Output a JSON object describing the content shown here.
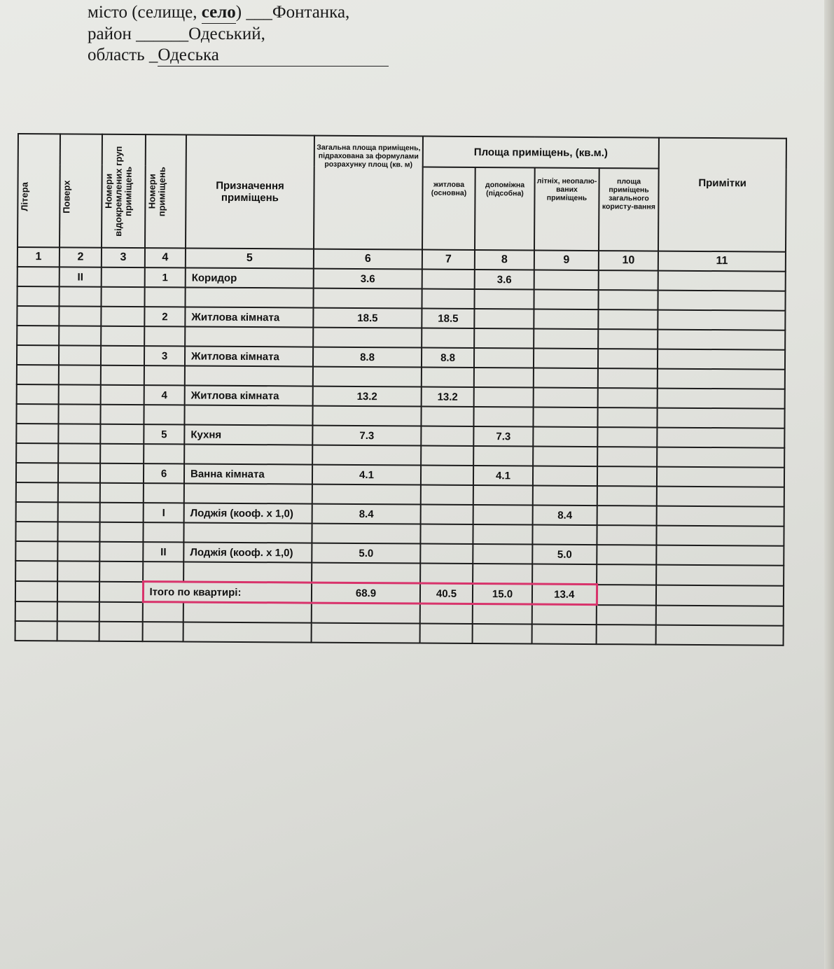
{
  "address": {
    "city_label": "місто (селище, ",
    "city_selected": "село",
    "city_label_end": ") ___",
    "city": "Фонтанка,",
    "district_label": "район ______",
    "district": "Одеський,",
    "region_label": "область _",
    "region": "Одеська"
  },
  "table": {
    "headers": {
      "col1": "Літера",
      "col2": "Поверх",
      "col3": "Номери відокремлених груп приміщень",
      "col4": "Номери приміщень",
      "col5": "Призначення приміщень",
      "col6": "Загальна площа приміщень, підрахована за формулами розрахунку площ (кв. м)",
      "group": "Площа приміщень, (кв.м.)",
      "col7": "житлова (основна)",
      "col8": "допоміжна (підсобна)",
      "col9": "літніх, неопалю-ваних приміщень",
      "col10": "площа приміщень загального користу-вання",
      "col11": "Примітки"
    },
    "column_numbers": [
      "1",
      "2",
      "3",
      "4",
      "5",
      "6",
      "7",
      "8",
      "9",
      "10",
      "11"
    ],
    "rows": [
      {
        "floor": "II",
        "no": "1",
        "name": "Коридор",
        "total": "3.6",
        "living": "",
        "aux": "3.6",
        "summer": ""
      },
      {
        "floor": "",
        "no": "2",
        "name": "Житлова кімната",
        "total": "18.5",
        "living": "18.5",
        "aux": "",
        "summer": ""
      },
      {
        "floor": "",
        "no": "3",
        "name": "Житлова кімната",
        "total": "8.8",
        "living": "8.8",
        "aux": "",
        "summer": ""
      },
      {
        "floor": "",
        "no": "4",
        "name": "Житлова кімната",
        "total": "13.2",
        "living": "13.2",
        "aux": "",
        "summer": ""
      },
      {
        "floor": "",
        "no": "5",
        "name": "Кухня",
        "total": "7.3",
        "living": "",
        "aux": "7.3",
        "summer": ""
      },
      {
        "floor": "",
        "no": "6",
        "name": "Ванна кімната",
        "total": "4.1",
        "living": "",
        "aux": "4.1",
        "summer": ""
      },
      {
        "floor": "",
        "no": "I",
        "name": "Лоджія (кооф. x 1,0)",
        "total": "8.4",
        "living": "",
        "aux": "",
        "summer": "8.4"
      },
      {
        "floor": "",
        "no": "II",
        "name": "Лоджія (кооф. x 1,0)",
        "total": "5.0",
        "living": "",
        "aux": "",
        "summer": "5.0"
      }
    ],
    "total": {
      "label": "Ітого по квартирі:",
      "total": "68.9",
      "living": "40.5",
      "aux": "15.0",
      "summer": "13.4"
    },
    "highlight_color": "#d8336b"
  }
}
